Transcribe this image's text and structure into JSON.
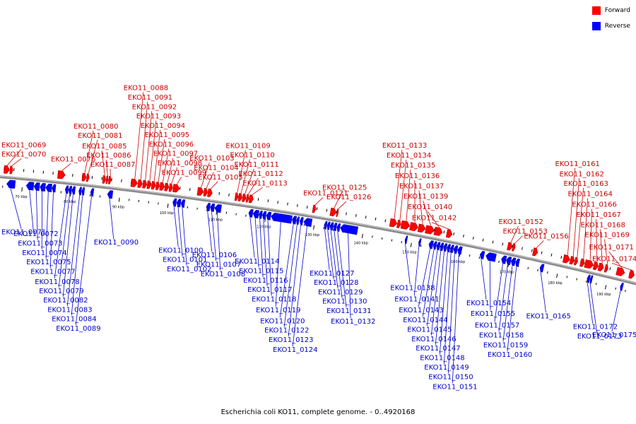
{
  "legend": {
    "forward_label": "Forward",
    "reverse_label": "Reverse",
    "forward_color": "#ff0000",
    "reverse_color": "#0000ff"
  },
  "caption": "Escherichia coli KO11, complete genome. - 0..4920168",
  "colors": {
    "forward": "#ff0000",
    "forward_dark": "#b00000",
    "reverse": "#0000ff",
    "reverse_dark": "#0000a0",
    "backbone": "#8a8a8a",
    "label_forward": "#cc0000",
    "label_reverse": "#0000cc"
  },
  "scale": {
    "start_kbp": 65,
    "end_kbp": 196,
    "ticks": [
      "70 kbp",
      "80 kbp",
      "90 kbp",
      "100 kbp",
      "110 kbp",
      "120 kbp",
      "130 kbp",
      "140 kbp",
      "150 kbp",
      "160 kbp",
      "170 kbp",
      "180 kbp",
      "190 kbp"
    ]
  },
  "forward_genes": [
    {
      "label": "EKO11_0069",
      "start_kbp": 66.0,
      "end_kbp": 67.1
    },
    {
      "label": "EKO11_0070",
      "start_kbp": 67.2,
      "end_kbp": 67.8
    },
    {
      "label": "EKO11_0076",
      "start_kbp": 77.0,
      "end_kbp": 78.5
    },
    {
      "label": "EKO11_0080",
      "start_kbp": 82.0,
      "end_kbp": 82.8
    },
    {
      "label": "EKO11_0081",
      "start_kbp": 82.9,
      "end_kbp": 83.4
    },
    {
      "label": "EKO11_0085",
      "start_kbp": 86.2,
      "end_kbp": 86.8
    },
    {
      "label": "EKO11_0086",
      "start_kbp": 86.9,
      "end_kbp": 87.3
    },
    {
      "label": "EKO11_0087",
      "start_kbp": 87.4,
      "end_kbp": 87.9
    },
    {
      "label": "EKO11_0088",
      "start_kbp": 92.0,
      "end_kbp": 93.3
    },
    {
      "label": "EKO11_0091",
      "start_kbp": 93.4,
      "end_kbp": 94.3
    },
    {
      "label": "EKO11_0092",
      "start_kbp": 94.4,
      "end_kbp": 95.2
    },
    {
      "label": "EKO11_0093",
      "start_kbp": 95.3,
      "end_kbp": 96.1
    },
    {
      "label": "EKO11_0094",
      "start_kbp": 96.2,
      "end_kbp": 97.0
    },
    {
      "label": "EKO11_0095",
      "start_kbp": 97.1,
      "end_kbp": 97.8
    },
    {
      "label": "EKO11_0096",
      "start_kbp": 97.9,
      "end_kbp": 98.8
    },
    {
      "label": "EKO11_0097",
      "start_kbp": 98.9,
      "end_kbp": 99.7
    },
    {
      "label": "EKO11_0098",
      "start_kbp": 99.8,
      "end_kbp": 100.5
    },
    {
      "label": "EKO11_0099",
      "start_kbp": 100.6,
      "end_kbp": 101.9
    },
    {
      "label": "EKO11_0103",
      "start_kbp": 105.6,
      "end_kbp": 106.8
    },
    {
      "label": "EKO11_0104",
      "start_kbp": 106.9,
      "end_kbp": 107.6
    },
    {
      "label": "EKO11_0105",
      "start_kbp": 107.7,
      "end_kbp": 108.6
    },
    {
      "label": "EKO11_0109",
      "start_kbp": 113.3,
      "end_kbp": 113.9
    },
    {
      "label": "EKO11_0110",
      "start_kbp": 114.0,
      "end_kbp": 114.7
    },
    {
      "label": "EKO11_0111",
      "start_kbp": 114.8,
      "end_kbp": 115.5
    },
    {
      "label": "EKO11_0112",
      "start_kbp": 115.6,
      "end_kbp": 116.1
    },
    {
      "label": "EKO11_0113",
      "start_kbp": 116.2,
      "end_kbp": 117.0
    },
    {
      "label": "EKO11_0121",
      "start_kbp": 129.2,
      "end_kbp": 129.8
    },
    {
      "label": "EKO11_0125",
      "start_kbp": 132.8,
      "end_kbp": 134.0
    },
    {
      "label": "EKO11_0126",
      "start_kbp": 134.1,
      "end_kbp": 134.4
    },
    {
      "label": "EKO11_0133",
      "start_kbp": 145.0,
      "end_kbp": 146.4
    },
    {
      "label": "EKO11_0134",
      "start_kbp": 146.5,
      "end_kbp": 147.2
    },
    {
      "label": "EKO11_0135",
      "start_kbp": 147.3,
      "end_kbp": 149.0
    },
    {
      "label": "EKO11_0136",
      "start_kbp": 149.1,
      "end_kbp": 150.7
    },
    {
      "label": "EKO11_0137",
      "start_kbp": 150.8,
      "end_kbp": 152.2
    },
    {
      "label": "EKO11_0139",
      "start_kbp": 152.3,
      "end_kbp": 154.0
    },
    {
      "label": "EKO11_0140",
      "start_kbp": 154.1,
      "end_kbp": 155.7
    },
    {
      "label": "EKO11_0142",
      "start_kbp": 156.6,
      "end_kbp": 157.7
    },
    {
      "label": "EKO11_0152",
      "start_kbp": 169.1,
      "end_kbp": 170.0
    },
    {
      "label": "EKO11_0153",
      "start_kbp": 170.1,
      "end_kbp": 170.6
    },
    {
      "label": "EKO11_0156",
      "start_kbp": 174.3,
      "end_kbp": 175.2
    },
    {
      "label": "EKO11_0161",
      "start_kbp": 180.5,
      "end_kbp": 181.8
    },
    {
      "label": "EKO11_0162",
      "start_kbp": 181.9,
      "end_kbp": 182.7
    },
    {
      "label": "EKO11_0163",
      "start_kbp": 182.8,
      "end_kbp": 183.4
    },
    {
      "label": "EKO11_0164",
      "start_kbp": 184.0,
      "end_kbp": 184.8
    },
    {
      "label": "EKO11_0166",
      "start_kbp": 184.9,
      "end_kbp": 186.6
    },
    {
      "label": "EKO11_0167",
      "start_kbp": 186.7,
      "end_kbp": 187.6
    },
    {
      "label": "EKO11_0168",
      "start_kbp": 187.7,
      "end_kbp": 188.7
    },
    {
      "label": "EKO11_0169",
      "start_kbp": 189.0,
      "end_kbp": 189.6
    },
    {
      "label": "EKO11_0171",
      "start_kbp": 191.4,
      "end_kbp": 193.0
    },
    {
      "label": "EKO11_0174",
      "start_kbp": 194.0,
      "end_kbp": 195.0
    }
  ],
  "reverse_genes": [
    {
      "label": "EKO11_0071",
      "start_kbp": 66.8,
      "end_kbp": 68.5
    },
    {
      "label": "EKO11_0072",
      "start_kbp": 70.8,
      "end_kbp": 72.3
    },
    {
      "label": "EKO11_0073",
      "start_kbp": 72.4,
      "end_kbp": 73.5
    },
    {
      "label": "EKO11_0074",
      "start_kbp": 73.6,
      "end_kbp": 74.7
    },
    {
      "label": "EKO11_0075",
      "start_kbp": 74.8,
      "end_kbp": 76.0
    },
    {
      "label": "EKO11_0077",
      "start_kbp": 76.1,
      "end_kbp": 76.8
    },
    {
      "label": "EKO11_0078",
      "start_kbp": 78.8,
      "end_kbp": 79.4
    },
    {
      "label": "EKO11_0079",
      "start_kbp": 79.5,
      "end_kbp": 80.1
    },
    {
      "label": "EKO11_0082",
      "start_kbp": 80.2,
      "end_kbp": 80.8
    },
    {
      "label": "EKO11_0083",
      "start_kbp": 81.6,
      "end_kbp": 82.1
    },
    {
      "label": "EKO11_0084",
      "start_kbp": 82.2,
      "end_kbp": 82.7
    },
    {
      "label": "EKO11_0089",
      "start_kbp": 84.0,
      "end_kbp": 84.6
    },
    {
      "label": "EKO11_0090",
      "start_kbp": 87.5,
      "end_kbp": 88.5
    },
    {
      "label": "EKO11_0100",
      "start_kbp": 100.9,
      "end_kbp": 101.6
    },
    {
      "label": "EKO11_0101",
      "start_kbp": 101.7,
      "end_kbp": 102.5
    },
    {
      "label": "EKO11_0102",
      "start_kbp": 102.6,
      "end_kbp": 103.3
    },
    {
      "label": "EKO11_0106",
      "start_kbp": 107.8,
      "end_kbp": 108.5
    },
    {
      "label": "EKO11_0107",
      "start_kbp": 108.6,
      "end_kbp": 109.4
    },
    {
      "label": "EKO11_0108",
      "start_kbp": 109.5,
      "end_kbp": 110.8
    },
    {
      "label": "EKO11_0114",
      "start_kbp": 116.5,
      "end_kbp": 117.3
    },
    {
      "label": "EKO11_0115",
      "start_kbp": 117.4,
      "end_kbp": 118.5
    },
    {
      "label": "EKO11_0116",
      "start_kbp": 118.6,
      "end_kbp": 119.2
    },
    {
      "label": "EKO11_0117",
      "start_kbp": 119.3,
      "end_kbp": 120.0
    },
    {
      "label": "EKO11_0118",
      "start_kbp": 120.1,
      "end_kbp": 121.0
    },
    {
      "label": "EKO11_0119",
      "start_kbp": 121.1,
      "end_kbp": 125.3
    },
    {
      "label": "EKO11_0120",
      "start_kbp": 125.4,
      "end_kbp": 126.2
    },
    {
      "label": "EKO11_0122",
      "start_kbp": 126.3,
      "end_kbp": 126.8
    },
    {
      "label": "EKO11_0123",
      "start_kbp": 127.0,
      "end_kbp": 127.6
    },
    {
      "label": "EKO11_0124",
      "start_kbp": 127.8,
      "end_kbp": 129.4
    },
    {
      "label": "EKO11_0127",
      "start_kbp": 132.0,
      "end_kbp": 132.5
    },
    {
      "label": "EKO11_0128",
      "start_kbp": 132.6,
      "end_kbp": 133.1
    },
    {
      "label": "EKO11_0129",
      "start_kbp": 133.2,
      "end_kbp": 133.8
    },
    {
      "label": "EKO11_0130",
      "start_kbp": 133.9,
      "end_kbp": 134.5
    },
    {
      "label": "EKO11_0131",
      "start_kbp": 134.6,
      "end_kbp": 135.2
    },
    {
      "label": "EKO11_0132",
      "start_kbp": 135.3,
      "end_kbp": 138.8
    },
    {
      "label": "EKO11_0138",
      "start_kbp": 148.6,
      "end_kbp": 149.0
    },
    {
      "label": "EKO11_0141",
      "start_kbp": 151.4,
      "end_kbp": 151.8
    },
    {
      "label": "EKO11_0143",
      "start_kbp": 153.5,
      "end_kbp": 154.3
    },
    {
      "label": "EKO11_0144",
      "start_kbp": 154.4,
      "end_kbp": 155.0
    },
    {
      "label": "EKO11_0145",
      "start_kbp": 155.1,
      "end_kbp": 155.7
    },
    {
      "label": "EKO11_0146",
      "start_kbp": 155.8,
      "end_kbp": 156.4
    },
    {
      "label": "EKO11_0147",
      "start_kbp": 156.5,
      "end_kbp": 157.1
    },
    {
      "label": "EKO11_0148",
      "start_kbp": 157.2,
      "end_kbp": 157.8
    },
    {
      "label": "EKO11_0149",
      "start_kbp": 157.9,
      "end_kbp": 158.5
    },
    {
      "label": "EKO11_0150",
      "start_kbp": 158.6,
      "end_kbp": 159.3
    },
    {
      "label": "EKO11_0151",
      "start_kbp": 159.4,
      "end_kbp": 160.2
    },
    {
      "label": "EKO11_0154",
      "start_kbp": 164.0,
      "end_kbp": 164.8
    },
    {
      "label": "EKO11_0155",
      "start_kbp": 165.2,
      "end_kbp": 167.2
    },
    {
      "label": "EKO11_0157",
      "start_kbp": 168.4,
      "end_kbp": 169.3
    },
    {
      "label": "EKO11_0158",
      "start_kbp": 169.4,
      "end_kbp": 170.3
    },
    {
      "label": "EKO11_0159",
      "start_kbp": 170.4,
      "end_kbp": 171.2
    },
    {
      "label": "EKO11_0160",
      "start_kbp": 171.3,
      "end_kbp": 172.0
    },
    {
      "label": "EKO11_0165",
      "start_kbp": 176.3,
      "end_kbp": 177.0
    },
    {
      "label": "EKO11_0172",
      "start_kbp": 186.0,
      "end_kbp": 186.5
    },
    {
      "label": "EKO11_0173",
      "start_kbp": 186.6,
      "end_kbp": 187.0
    },
    {
      "label": "EKO11_0175",
      "start_kbp": 192.8,
      "end_kbp": 193.3
    }
  ]
}
